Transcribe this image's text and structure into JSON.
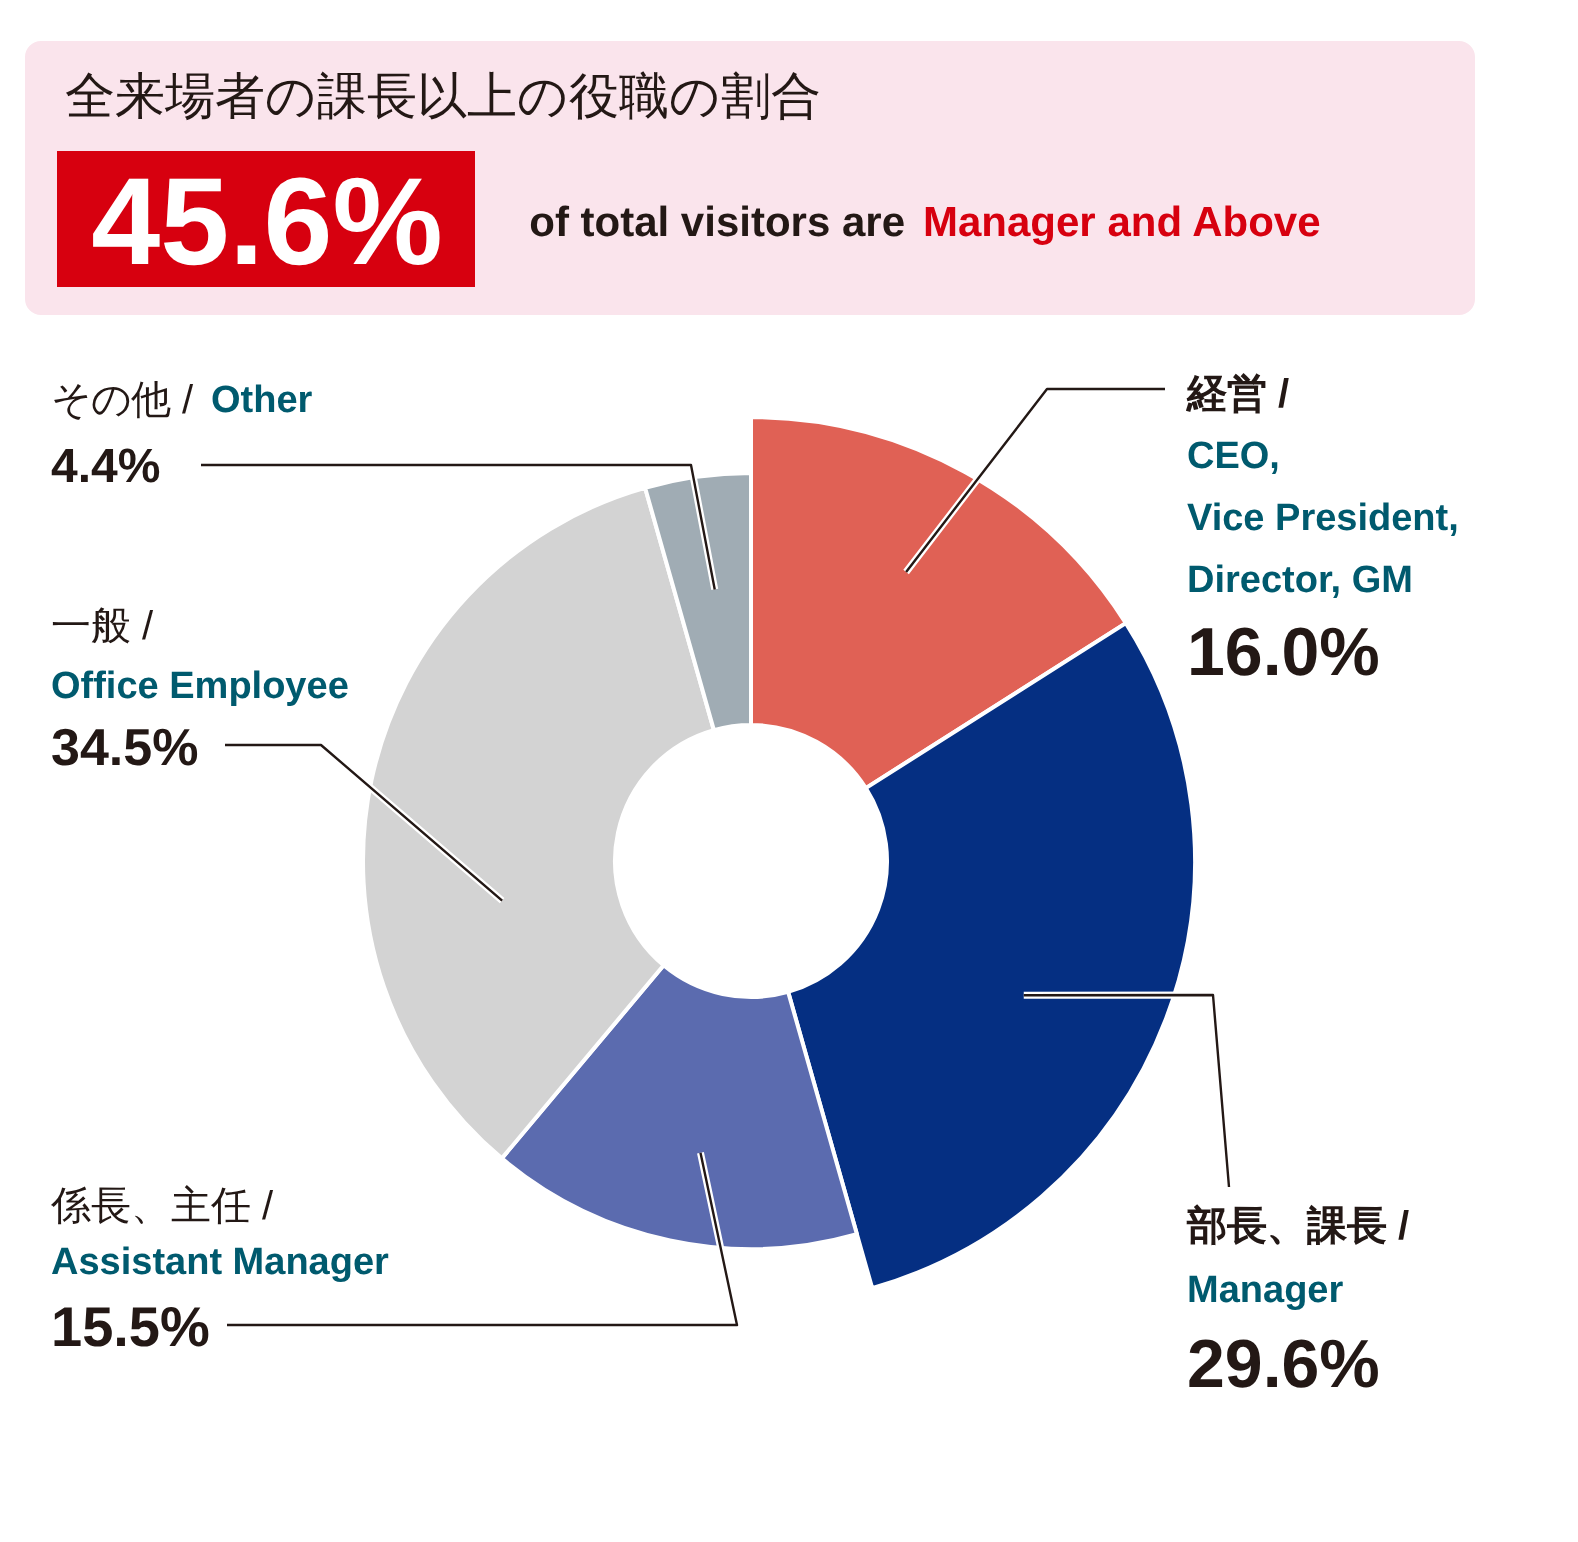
{
  "chart_data": {
    "type": "donut",
    "title": "全来場者の課長以上の役職の割合",
    "annotations": [
      "45.6%",
      "of total visitors are",
      "Manager and Above"
    ],
    "categories": [
      "経営 / CEO, Vice President, Director, GM",
      "部長、課長 / Manager",
      "係長、主任 / Assistant Manager",
      "一般 / Office Employee",
      "その他 / Other"
    ],
    "values": [
      16.0,
      29.6,
      15.5,
      34.5,
      4.4
    ],
    "colors": [
      "#e06155",
      "#052f82",
      "#5b6baf",
      "#d3d3d3",
      "#a0acb4"
    ],
    "value_labels": [
      "16.0%",
      "29.6%",
      "15.5%",
      "34.5%",
      "4.4%"
    ]
  }
}
